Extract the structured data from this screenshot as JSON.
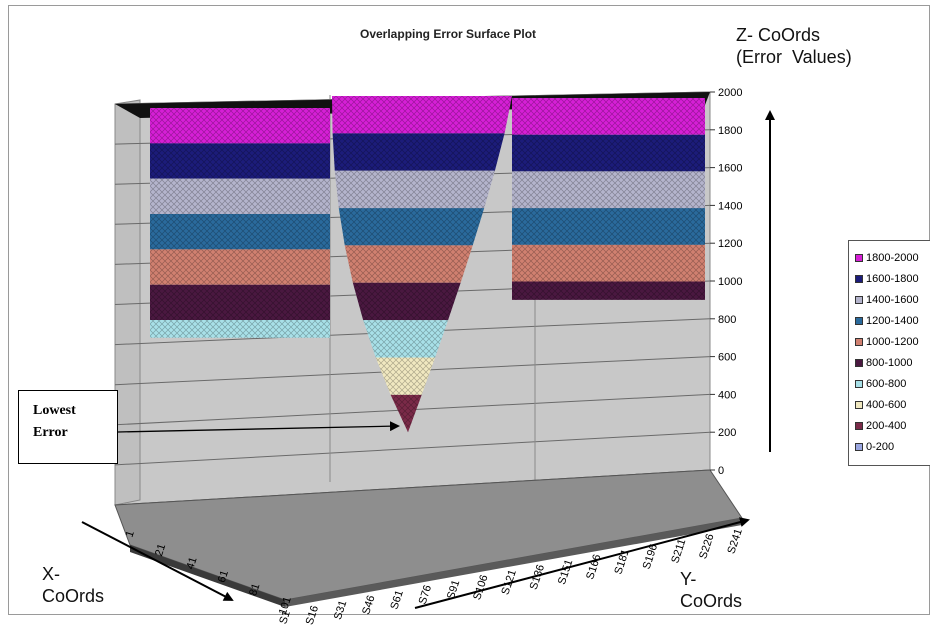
{
  "chart_data": {
    "type": "surface",
    "title": "Overlapping Error Surface Plot",
    "zlabel": "Z- CoOrds\n(Error  Values)",
    "xlabel": "X-\nCoOrds",
    "ylabel": "Y-\nCoOrds",
    "zlim": [
      0,
      2000
    ],
    "z_ticks": [
      "0",
      "200",
      "400",
      "600",
      "800",
      "1000",
      "1200",
      "1400",
      "1600",
      "1800",
      "2000"
    ],
    "x_ticks": [
      "1",
      "21",
      "41",
      "61",
      "81",
      "101"
    ],
    "y_ticks": [
      "S1",
      "S16",
      "S31",
      "S46",
      "S61",
      "S76",
      "S91",
      "S106",
      "S121",
      "S136",
      "S151",
      "S166",
      "S181",
      "S196",
      "S211",
      "S226",
      "S241"
    ],
    "legend": [
      {
        "label": "1800-2000",
        "color": "#d61fd6"
      },
      {
        "label": "1600-1800",
        "color": "#1c1c7a"
      },
      {
        "label": "1400-1600",
        "color": "#b4b4cc"
      },
      {
        "label": "1200-1400",
        "color": "#2a6a9c"
      },
      {
        "label": "1000-1200",
        "color": "#d08070"
      },
      {
        "label": "800-1000",
        "color": "#4a1840"
      },
      {
        "label": "600-800",
        "color": "#a8e0e8"
      },
      {
        "label": "400-600",
        "color": "#f0e8c0"
      },
      {
        "label": "200-400",
        "color": "#7a2a48"
      },
      {
        "label": "0-200",
        "color": "#9aa6e0"
      }
    ],
    "surfaces": [
      {
        "min_error": 700
      },
      {
        "min_error": 200
      },
      {
        "min_error": 900
      }
    ],
    "annotation": "Lowest\nError"
  }
}
